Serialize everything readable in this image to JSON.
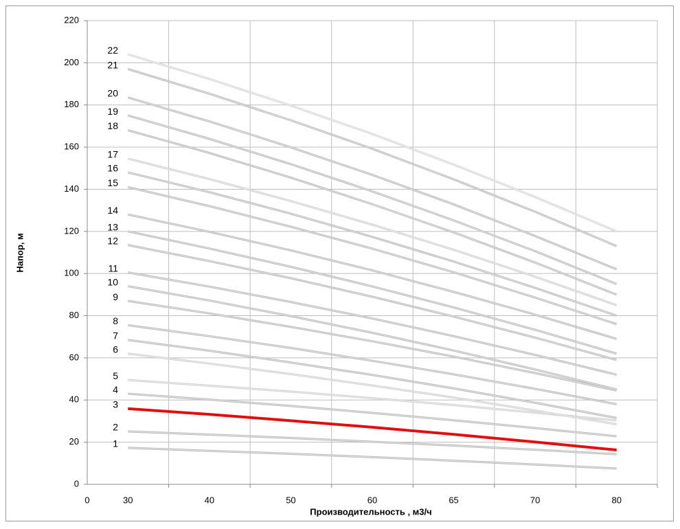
{
  "chart_data": {
    "type": "line",
    "x_axis_label": "Производительность , м3/ч",
    "y_axis_label": "Напор, м",
    "x_origin_label": "0",
    "categories": [
      "30",
      "40",
      "50",
      "60",
      "65",
      "70",
      "80"
    ],
    "ylim": [
      0,
      220
    ],
    "yticks": [
      0,
      20,
      40,
      60,
      80,
      100,
      120,
      140,
      160,
      180,
      200,
      220
    ],
    "grid": true,
    "series": [
      {
        "name": "1",
        "color": "#b8b8b8",
        "values": [
          17.3,
          15.9,
          14.5,
          12.9,
          11.2,
          9.4,
          7.5
        ]
      },
      {
        "name": "2",
        "color": "#b8b8b8",
        "values": [
          25.1,
          23.6,
          22.0,
          20.2,
          18.4,
          16.4,
          14.3
        ]
      },
      {
        "name": "3",
        "color": "#e01010",
        "values": [
          35.9,
          33.2,
          30.2,
          27.1,
          23.7,
          20.1,
          16.3
        ]
      },
      {
        "name": "4",
        "color": "#b8b8b8",
        "values": [
          43,
          40.2,
          37.2,
          33.9,
          30.4,
          26.7,
          22.8
        ]
      },
      {
        "name": "5",
        "color": "#cfcfcf",
        "values": [
          49.5,
          46.8,
          44.0,
          40.9,
          37.6,
          34.0,
          30.3
        ]
      },
      {
        "name": "6",
        "color": "#cfcfcf",
        "values": [
          62,
          57.3,
          52.3,
          46.9,
          41.2,
          35.0,
          28.5
        ]
      },
      {
        "name": "7",
        "color": "#b8b8b8",
        "values": [
          68.5,
          63.4,
          57.8,
          51.9,
          45.5,
          38.7,
          31.5
        ]
      },
      {
        "name": "8",
        "color": "#b8b8b8",
        "values": [
          75.5,
          70.3,
          64.7,
          58.6,
          52.2,
          45.3,
          38
        ]
      },
      {
        "name": "9",
        "color": "#b8b8b8",
        "values": [
          87,
          81.1,
          74.7,
          67.9,
          60.6,
          52.8,
          44.5
        ]
      },
      {
        "name": "10",
        "color": "#b8b8b8",
        "values": [
          94,
          87.2,
          79.8,
          71.9,
          63.5,
          54.5,
          45
        ]
      },
      {
        "name": "11",
        "color": "#b8b8b8",
        "values": [
          100.5,
          93.8,
          86.5,
          78.7,
          70.3,
          61.4,
          52
        ]
      },
      {
        "name": "12",
        "color": "#b8b8b8",
        "values": [
          113.5,
          105.9,
          97.8,
          89.0,
          79.6,
          69.6,
          59
        ]
      },
      {
        "name": "13",
        "color": "#b8b8b8",
        "values": [
          120,
          111.9,
          103.2,
          93.9,
          83.9,
          73.3,
          62
        ]
      },
      {
        "name": "14",
        "color": "#b8b8b8",
        "values": [
          128,
          119.8,
          111.0,
          101.5,
          91.3,
          80.5,
          69
        ]
      },
      {
        "name": "15",
        "color": "#b8b8b8",
        "values": [
          141,
          132.0,
          122.2,
          111.8,
          100.6,
          88.6,
          76
        ]
      },
      {
        "name": "16",
        "color": "#b8b8b8",
        "values": [
          148,
          138.6,
          128.4,
          117.4,
          105.7,
          93.2,
          80
        ]
      },
      {
        "name": "17",
        "color": "#cfcfcf",
        "values": [
          154.5,
          144.8,
          134.4,
          123.2,
          111.3,
          98.5,
          85
        ]
      },
      {
        "name": "18",
        "color": "#b8b8b8",
        "values": [
          168,
          157.2,
          145.5,
          132.9,
          119.5,
          105.2,
          90
        ]
      },
      {
        "name": "19",
        "color": "#b8b8b8",
        "values": [
          175,
          163.9,
          151.9,
          139,
          125.2,
          110.6,
          95
        ]
      },
      {
        "name": "20",
        "color": "#b8b8b8",
        "values": [
          183.5,
          172.2,
          159.9,
          146.8,
          132.8,
          117.8,
          102
        ]
      },
      {
        "name": "21",
        "color": "#b8b8b8",
        "values": [
          197,
          185.3,
          172.7,
          159.2,
          144.7,
          129.3,
          113
        ]
      },
      {
        "name": "22",
        "color": "#d6d6d6",
        "values": [
          204,
          192.3,
          179.7,
          166.2,
          151.7,
          136.3,
          120
        ]
      }
    ]
  }
}
